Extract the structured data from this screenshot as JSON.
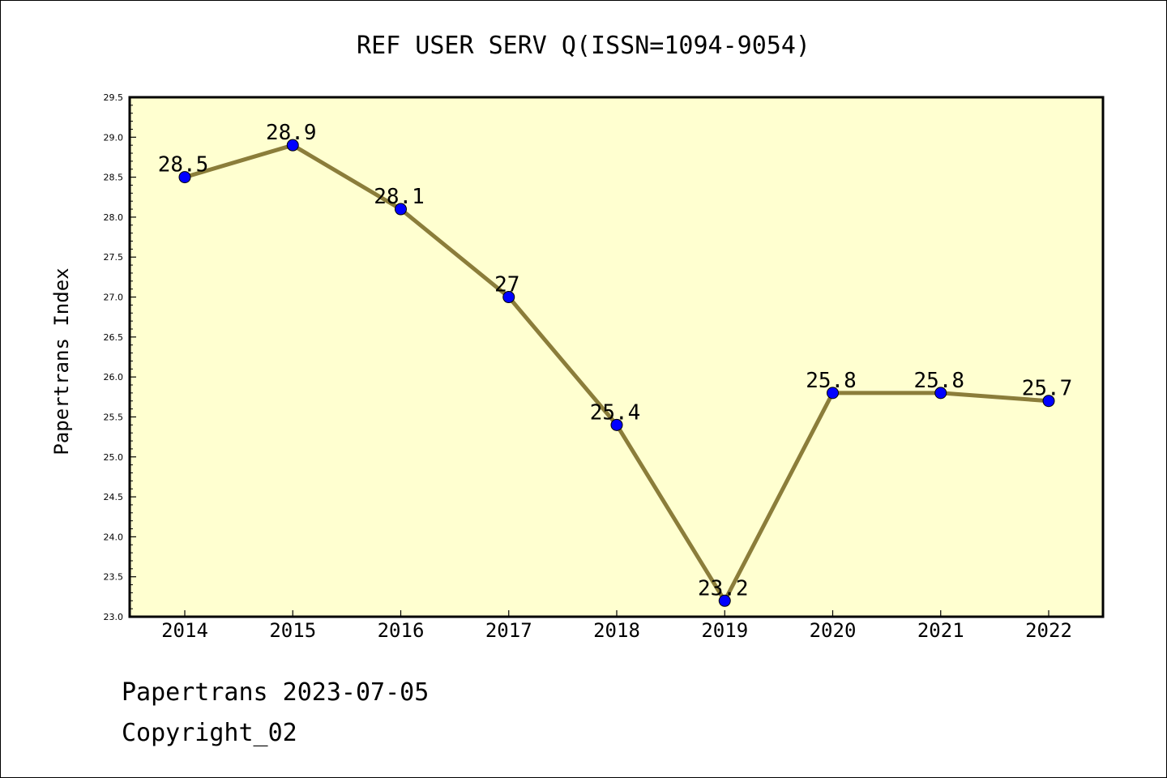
{
  "chart_data": {
    "type": "line",
    "title": "REF USER SERV Q(ISSN=1094-9054)",
    "xlabel": "",
    "ylabel": "Papertrans Index",
    "categories": [
      "2014",
      "2015",
      "2016",
      "2017",
      "2018",
      "2019",
      "2020",
      "2021",
      "2022"
    ],
    "series": [
      {
        "values": [
          28.5,
          28.9,
          28.1,
          27.0,
          25.4,
          23.2,
          25.8,
          25.8,
          25.7
        ],
        "labels": [
          "28.5",
          "28.9",
          "28.1",
          "27",
          "25.4",
          "23.2",
          "25.8",
          "25.8",
          "25.7"
        ]
      }
    ],
    "ylim": [
      23.0,
      29.5
    ],
    "yticks": [
      "23.0",
      "23.5",
      "24.0",
      "24.5",
      "25.0",
      "25.5",
      "26.0",
      "26.5",
      "27.0",
      "27.5",
      "28.0",
      "28.5",
      "29.0",
      "29.5"
    ],
    "grid": false,
    "legend": "none",
    "colors": {
      "plot_background": "#ffffd0",
      "line": "#8b7d3a",
      "marker": "#0000ff"
    }
  },
  "footer": {
    "line1": "Papertrans 2023-07-05",
    "line2": "Copyright_02"
  }
}
